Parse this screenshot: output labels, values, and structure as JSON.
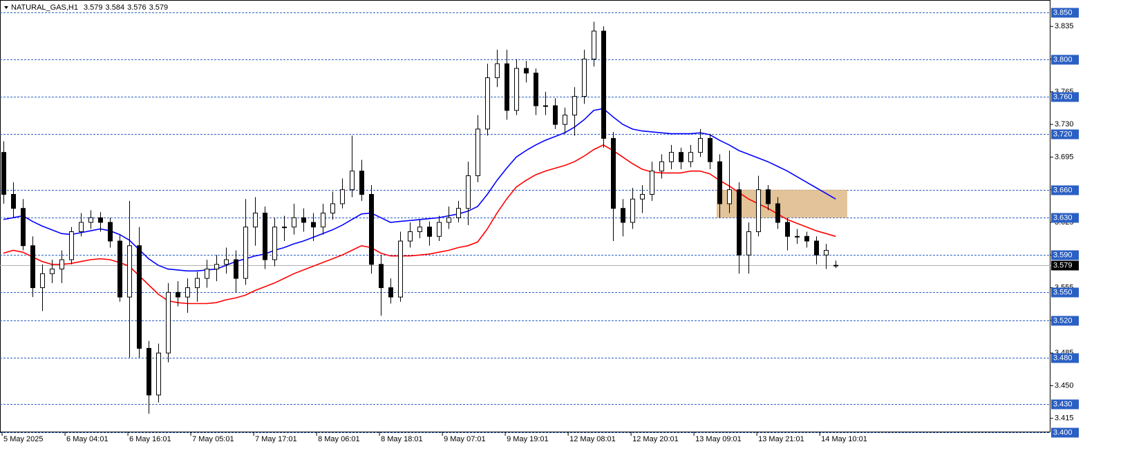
{
  "chart_data": {
    "type": "candlestick",
    "symbol": "NATURAL_GAS,H1",
    "ylim": [
      3.4,
      3.85
    ],
    "xlim": [
      -0.36,
      108.2
    ],
    "yticks": [
      3.415,
      {
        "value": 3.45,
        "label": "3.450"
      },
      3.485,
      {
        "value": 3.52,
        "label": "3.520"
      },
      3.555,
      {
        "value": 3.59,
        "label": "3.590"
      },
      3.625,
      {
        "value": 3.66,
        "label": "3.660"
      },
      3.695,
      {
        "value": 3.73,
        "label": "3.730"
      },
      3.765,
      {
        "value": 3.8,
        "label": "3.800"
      },
      3.835
    ],
    "xticks": [
      {
        "value": 0,
        "label": "5 May 2025"
      },
      {
        "value": 6.5,
        "label": "6 May 04:01"
      },
      {
        "value": 13,
        "label": "6 May 16:01"
      },
      {
        "value": 19.5,
        "label": "7 May 05:01"
      },
      {
        "value": 26,
        "label": "7 May 17:01"
      },
      {
        "value": 32.5,
        "label": "8 May 06:01"
      },
      {
        "value": 39,
        "label": "8 May 18:01"
      },
      {
        "value": 45.5,
        "label": "9 May 07:01"
      },
      {
        "value": 52,
        "label": "9 May 19:01"
      },
      {
        "value": 58.5,
        "label": "12 May 08:01"
      },
      {
        "value": 65,
        "label": "12 May 20:01"
      },
      {
        "value": 71.5,
        "label": "13 May 09:01"
      },
      {
        "value": 78,
        "label": "13 May 21:01"
      },
      {
        "value": 84.5,
        "label": "14 May 10:01"
      }
    ],
    "levels": [
      {
        "value": 3.85,
        "label": "3.850"
      },
      {
        "value": 3.8,
        "label": "3.800"
      },
      {
        "value": 3.76,
        "label": "3.760"
      },
      {
        "value": 3.72,
        "label": "3.720"
      },
      {
        "value": 3.66,
        "label": "3.660"
      },
      {
        "value": 3.63,
        "label": "3.630"
      },
      {
        "value": 3.59,
        "label": "3.590"
      },
      {
        "value": 3.55,
        "label": "3.550"
      },
      {
        "value": 3.52,
        "label": "3.520"
      },
      {
        "value": 3.48,
        "label": "3.480"
      },
      {
        "value": 3.43,
        "label": "3.430"
      },
      {
        "value": 3.4,
        "label": "3.400"
      }
    ],
    "level_color": "#2a5fc4",
    "zone": {
      "x": [
        73.7,
        87.2
      ],
      "y": [
        3.63,
        3.66
      ],
      "color": "#deb887"
    },
    "ohlc": [
      [
        3.7,
        3.712,
        3.645,
        3.655
      ],
      [
        3.655,
        3.668,
        3.63,
        3.64
      ],
      [
        3.64,
        3.65,
        3.595,
        3.6
      ],
      [
        3.6,
        3.61,
        3.545,
        3.555
      ],
      [
        3.555,
        3.58,
        3.53,
        3.57
      ],
      [
        3.57,
        3.585,
        3.56,
        3.575
      ],
      [
        3.575,
        3.595,
        3.56,
        3.585
      ],
      [
        3.585,
        3.62,
        3.58,
        3.615
      ],
      [
        3.615,
        3.635,
        3.61,
        3.625
      ],
      [
        3.625,
        3.638,
        3.618,
        3.63
      ],
      [
        3.63,
        3.636,
        3.615,
        3.625
      ],
      [
        3.625,
        3.63,
        3.598,
        3.605
      ],
      [
        3.605,
        3.612,
        3.54,
        3.545
      ],
      [
        3.545,
        3.648,
        3.48,
        3.6
      ],
      [
        3.6,
        3.62,
        3.48,
        3.49
      ],
      [
        3.49,
        3.498,
        3.42,
        3.44
      ],
      [
        3.44,
        3.495,
        3.432,
        3.485
      ],
      [
        3.485,
        3.56,
        3.475,
        3.55
      ],
      [
        3.55,
        3.562,
        3.535,
        3.545
      ],
      [
        3.545,
        3.565,
        3.528,
        3.555
      ],
      [
        3.555,
        3.572,
        3.54,
        3.565
      ],
      [
        3.565,
        3.585,
        3.555,
        3.575
      ],
      [
        3.575,
        3.59,
        3.562,
        3.58
      ],
      [
        3.58,
        3.598,
        3.57,
        3.585
      ],
      [
        3.585,
        3.595,
        3.55,
        3.565
      ],
      [
        3.565,
        3.65,
        3.558,
        3.62
      ],
      [
        3.62,
        3.652,
        3.6,
        3.635
      ],
      [
        3.635,
        3.642,
        3.575,
        3.585
      ],
      [
        3.585,
        3.63,
        3.578,
        3.62
      ],
      [
        3.62,
        3.632,
        3.605,
        3.62
      ],
      [
        3.62,
        3.645,
        3.612,
        3.63
      ],
      [
        3.63,
        3.64,
        3.615,
        3.625
      ],
      [
        3.625,
        3.635,
        3.605,
        3.62
      ],
      [
        3.62,
        3.645,
        3.612,
        3.635
      ],
      [
        3.635,
        3.658,
        3.628,
        3.645
      ],
      [
        3.645,
        3.672,
        3.64,
        3.66
      ],
      [
        3.66,
        3.718,
        3.652,
        3.68
      ],
      [
        3.68,
        3.692,
        3.648,
        3.655
      ],
      [
        3.655,
        3.665,
        3.57,
        3.58
      ],
      [
        3.58,
        3.59,
        3.525,
        3.555
      ],
      [
        3.555,
        3.565,
        3.538,
        3.545
      ],
      [
        3.545,
        3.615,
        3.54,
        3.605
      ],
      [
        3.605,
        3.625,
        3.598,
        3.615
      ],
      [
        3.615,
        3.628,
        3.608,
        3.62
      ],
      [
        3.62,
        3.626,
        3.6,
        3.61
      ],
      [
        3.61,
        3.632,
        3.605,
        3.625
      ],
      [
        3.625,
        3.642,
        3.618,
        3.63
      ],
      [
        3.63,
        3.648,
        3.625,
        3.64
      ],
      [
        3.64,
        3.69,
        3.622,
        3.675
      ],
      [
        3.675,
        3.74,
        3.668,
        3.725
      ],
      [
        3.725,
        3.795,
        3.718,
        3.78
      ],
      [
        3.78,
        3.81,
        3.77,
        3.795
      ],
      [
        3.795,
        3.81,
        3.735,
        3.745
      ],
      [
        3.745,
        3.8,
        3.74,
        3.79
      ],
      [
        3.79,
        3.798,
        3.775,
        3.785
      ],
      [
        3.785,
        3.79,
        3.74,
        3.75
      ],
      [
        3.75,
        3.765,
        3.74,
        3.75
      ],
      [
        3.75,
        3.758,
        3.725,
        3.73
      ],
      [
        3.73,
        3.748,
        3.72,
        3.74
      ],
      [
        3.74,
        3.77,
        3.718,
        3.76
      ],
      [
        3.76,
        3.81,
        3.752,
        3.8
      ],
      [
        3.8,
        3.84,
        3.792,
        3.83
      ],
      [
        3.83,
        3.835,
        3.705,
        3.715
      ],
      [
        3.715,
        3.722,
        3.605,
        3.64
      ],
      [
        3.64,
        3.65,
        3.61,
        3.625
      ],
      [
        3.625,
        3.662,
        3.618,
        3.65
      ],
      [
        3.65,
        3.665,
        3.635,
        3.655
      ],
      [
        3.655,
        3.69,
        3.648,
        3.68
      ],
      [
        3.68,
        3.698,
        3.672,
        3.69
      ],
      [
        3.69,
        3.708,
        3.682,
        3.7
      ],
      [
        3.7,
        3.705,
        3.682,
        3.69
      ],
      [
        3.69,
        3.708,
        3.684,
        3.7
      ],
      [
        3.7,
        3.725,
        3.695,
        3.715
      ],
      [
        3.715,
        3.72,
        3.682,
        3.69
      ],
      [
        3.69,
        3.698,
        3.63,
        3.645
      ],
      [
        3.645,
        3.702,
        3.635,
        3.66
      ],
      [
        3.66,
        3.668,
        3.57,
        3.59
      ],
      [
        3.59,
        3.625,
        3.57,
        3.615
      ],
      [
        3.615,
        3.675,
        3.61,
        3.66
      ],
      [
        3.66,
        3.665,
        3.638,
        3.645
      ],
      [
        3.645,
        3.652,
        3.618,
        3.625
      ],
      [
        3.625,
        3.63,
        3.595,
        3.61
      ],
      [
        3.61,
        3.618,
        3.602,
        3.61
      ],
      [
        3.61,
        3.615,
        3.598,
        3.605
      ],
      [
        3.605,
        3.61,
        3.58,
        3.59
      ],
      [
        3.59,
        3.602,
        3.575,
        3.595
      ],
      [
        3.579,
        3.584,
        3.576,
        3.579
      ]
    ],
    "series": [
      {
        "color": "#0000ff",
        "values": [
          3.628,
          3.63,
          3.632,
          3.626,
          3.621,
          3.617,
          3.613,
          3.612,
          3.614,
          3.616,
          3.618,
          3.616,
          3.612,
          3.606,
          3.596,
          3.586,
          3.579,
          3.575,
          3.574,
          3.573,
          3.573,
          3.574,
          3.575,
          3.579,
          3.583,
          3.586,
          3.589,
          3.591,
          3.595,
          3.598,
          3.602,
          3.605,
          3.609,
          3.613,
          3.617,
          3.622,
          3.628,
          3.634,
          3.635,
          3.63,
          3.625,
          3.626,
          3.627,
          3.628,
          3.629,
          3.63,
          3.632,
          3.634,
          3.637,
          3.642,
          3.655,
          3.67,
          3.683,
          3.695,
          3.702,
          3.708,
          3.713,
          3.717,
          3.721,
          3.727,
          3.735,
          3.745,
          3.747,
          3.738,
          3.73,
          3.725,
          3.723,
          3.722,
          3.721,
          3.72,
          3.72,
          3.72,
          3.721,
          3.719,
          3.713,
          3.708,
          3.702,
          3.698,
          3.694,
          3.69,
          3.685,
          3.68,
          3.674,
          3.668,
          3.662,
          3.656,
          3.65
        ]
      },
      {
        "color": "#ff0000",
        "values": [
          3.592,
          3.595,
          3.593,
          3.588,
          3.583,
          3.58,
          3.58,
          3.581,
          3.583,
          3.585,
          3.586,
          3.585,
          3.582,
          3.578,
          3.568,
          3.558,
          3.548,
          3.541,
          3.539,
          3.538,
          3.538,
          3.538,
          3.539,
          3.542,
          3.544,
          3.547,
          3.552,
          3.556,
          3.56,
          3.565,
          3.57,
          3.574,
          3.578,
          3.582,
          3.586,
          3.59,
          3.595,
          3.6,
          3.598,
          3.592,
          3.589,
          3.589,
          3.589,
          3.59,
          3.591,
          3.593,
          3.595,
          3.598,
          3.6,
          3.604,
          3.618,
          3.635,
          3.65,
          3.663,
          3.67,
          3.676,
          3.68,
          3.683,
          3.686,
          3.69,
          3.696,
          3.703,
          3.708,
          3.702,
          3.695,
          3.688,
          3.682,
          3.679,
          3.678,
          3.678,
          3.678,
          3.68,
          3.68,
          3.677,
          3.67,
          3.664,
          3.657,
          3.65,
          3.645,
          3.64,
          3.634,
          3.628,
          3.624,
          3.62,
          3.616,
          3.613,
          3.61
        ]
      }
    ]
  }
}
